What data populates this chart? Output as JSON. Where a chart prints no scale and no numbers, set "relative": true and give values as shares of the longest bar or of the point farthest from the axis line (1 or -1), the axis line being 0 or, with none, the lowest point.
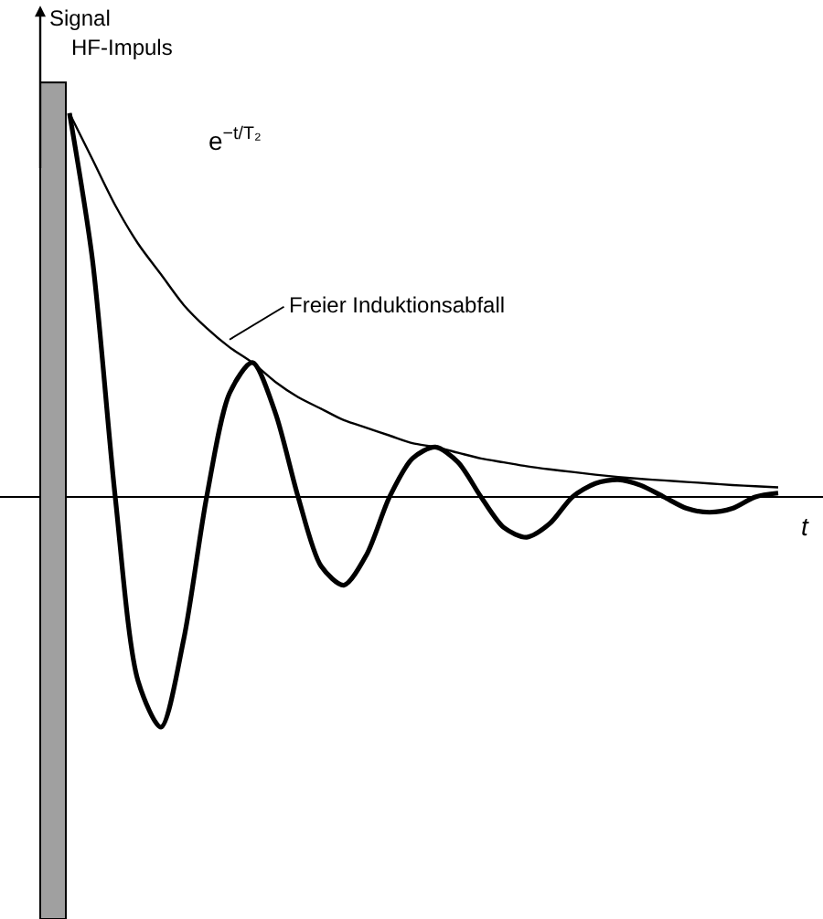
{
  "chart_data": {
    "type": "line",
    "relative": true,
    "xlabel": "t",
    "ylabel": "Signal",
    "categories": [
      null,
      null,
      null,
      null,
      null,
      null,
      null,
      null,
      null,
      null,
      null,
      null,
      null,
      null,
      null,
      null,
      null,
      null,
      null,
      null,
      null,
      null,
      null,
      null,
      null,
      null,
      null,
      null,
      null,
      null,
      null,
      null
    ],
    "series": [
      {
        "color": "#000000",
        "values": [
          1.0,
          0.88,
          0.76,
          0.66,
          0.58,
          0.5,
          0.44,
          0.39,
          0.35,
          0.3,
          0.26,
          0.23,
          0.2,
          0.18,
          0.16,
          0.14,
          0.13,
          0.115,
          0.1,
          0.09,
          0.08,
          0.072,
          0.065,
          0.058,
          0.052,
          0.047,
          0.043,
          0.039,
          0.035,
          0.031,
          0.028,
          0.025
        ]
      },
      {
        "color": "#000000",
        "values": [
          1.0,
          0.62,
          0,
          -0.48,
          -0.6,
          -0.37,
          0,
          0.27,
          0.35,
          0.22,
          0,
          -0.18,
          -0.23,
          -0.15,
          0,
          0.1,
          0.13,
          0.09,
          0,
          -0.08,
          -0.105,
          -0.07,
          0,
          0.035,
          0.045,
          0.03,
          0,
          -0.03,
          -0.04,
          -0.03,
          0,
          0.01
        ]
      }
    ],
    "annotations": [
      "HF-Impuls",
      "e$^{−t/T₂}$",
      "Freier Induktionsabfall"
    ],
    "marker": "none",
    "line_style": "solid"
  }
}
